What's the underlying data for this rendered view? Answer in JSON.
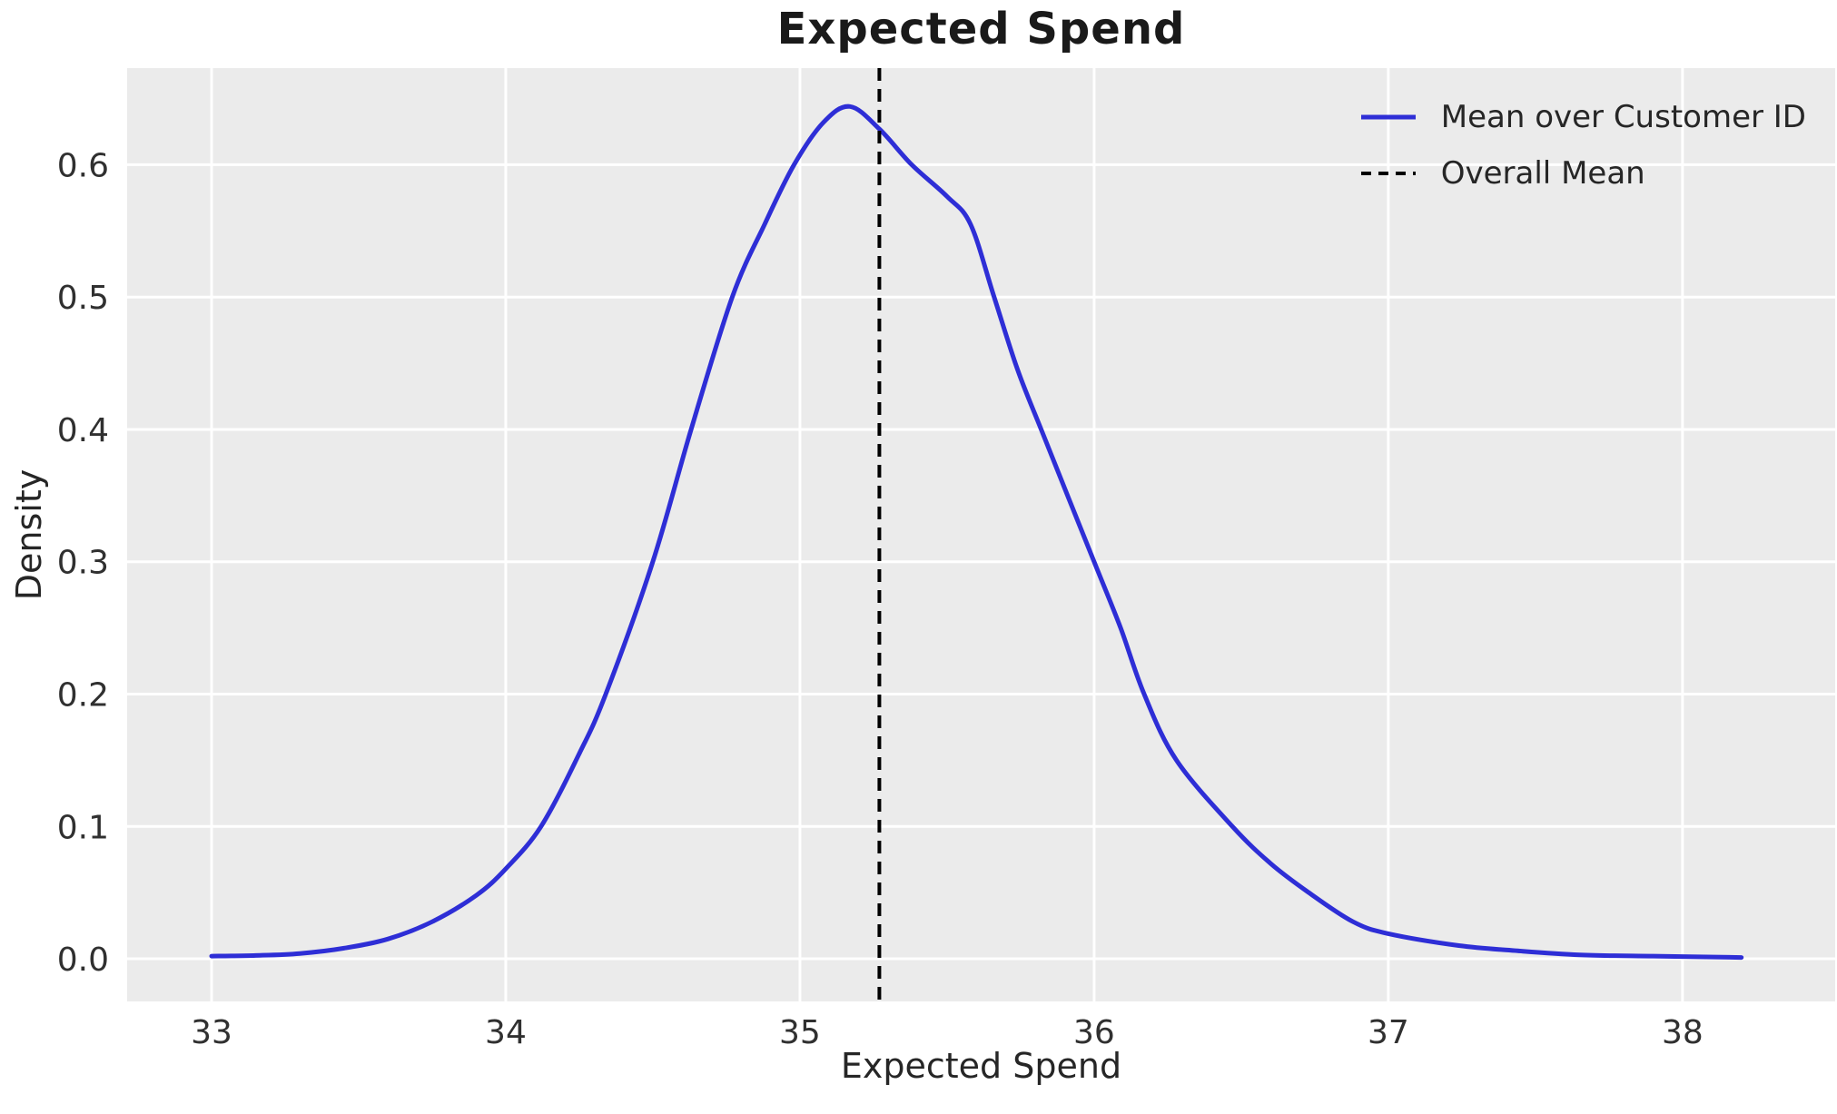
{
  "figure": {
    "background_color": "#ffffff",
    "plot_background_color": "#ebebeb",
    "grid_color": "#ffffff",
    "text_color": "#262626"
  },
  "chart_data": {
    "type": "line",
    "subtype": "kde-density",
    "title": "Expected Spend",
    "xlabel": "Expected Spend",
    "ylabel": "Density",
    "xlim": [
      32.713,
      38.519
    ],
    "ylim": [
      -0.0322,
      0.673
    ],
    "x_ticks": [
      33,
      34,
      35,
      36,
      37,
      38
    ],
    "y_ticks": [
      0.0,
      0.1,
      0.2,
      0.3,
      0.4,
      0.5,
      0.6
    ],
    "grid": true,
    "legend_position": "upper right",
    "series": [
      {
        "name": "Mean over Customer ID",
        "color": "#2e2ed6",
        "style": "solid",
        "line_width": 5,
        "points": [
          [
            33.0,
            0.002
          ],
          [
            33.15,
            0.0025
          ],
          [
            33.3,
            0.004
          ],
          [
            33.45,
            0.008
          ],
          [
            33.6,
            0.015
          ],
          [
            33.75,
            0.028
          ],
          [
            33.9,
            0.048
          ],
          [
            34.0,
            0.068
          ],
          [
            34.12,
            0.1
          ],
          [
            34.25,
            0.155
          ],
          [
            34.34,
            0.2
          ],
          [
            34.5,
            0.3
          ],
          [
            34.63,
            0.4
          ],
          [
            34.77,
            0.5
          ],
          [
            34.88,
            0.555
          ],
          [
            34.98,
            0.6
          ],
          [
            35.08,
            0.632
          ],
          [
            35.17,
            0.644
          ],
          [
            35.27,
            0.627
          ],
          [
            35.38,
            0.6
          ],
          [
            35.5,
            0.576
          ],
          [
            35.58,
            0.555
          ],
          [
            35.66,
            0.5
          ],
          [
            35.74,
            0.445
          ],
          [
            35.82,
            0.4
          ],
          [
            35.91,
            0.35
          ],
          [
            36.0,
            0.3
          ],
          [
            36.09,
            0.25
          ],
          [
            36.17,
            0.2
          ],
          [
            36.28,
            0.15
          ],
          [
            36.47,
            0.1
          ],
          [
            36.6,
            0.072
          ],
          [
            36.73,
            0.05
          ],
          [
            36.88,
            0.028
          ],
          [
            37.0,
            0.019
          ],
          [
            37.24,
            0.01
          ],
          [
            37.44,
            0.006
          ],
          [
            37.65,
            0.003
          ],
          [
            37.9,
            0.002
          ],
          [
            38.2,
            0.001
          ]
        ]
      },
      {
        "name": "Overall Mean",
        "color": "#000000",
        "style": "dashed",
        "line_width": 4,
        "vline_x": 35.27
      }
    ]
  }
}
